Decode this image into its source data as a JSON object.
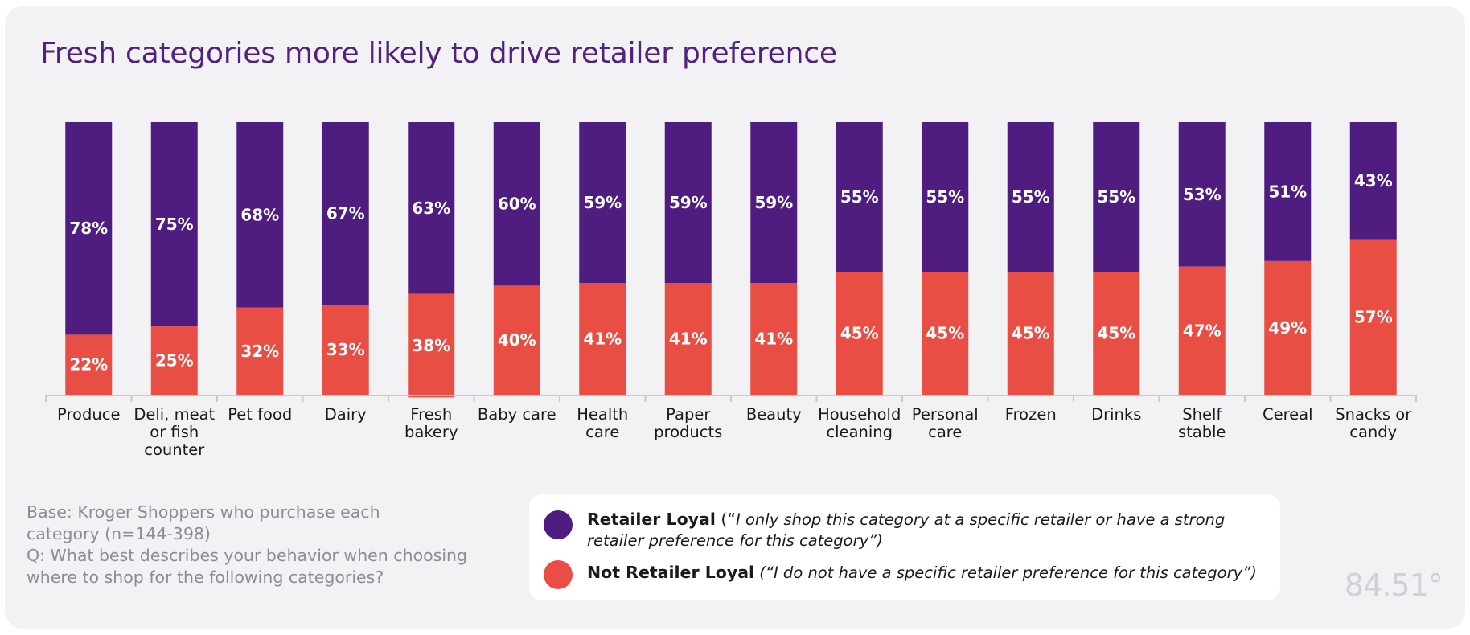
{
  "title": "Fresh categories more likely to drive retailer preference",
  "colors": {
    "loyal": "#4f1d7f",
    "not_loyal": "#e84e43",
    "axis": "#c8c8d0"
  },
  "chart_data": {
    "type": "bar",
    "stacked": true,
    "normalized": true,
    "title": "Fresh categories more likely to drive retailer preference",
    "ylim": [
      0,
      100
    ],
    "categories": [
      [
        "Produce"
      ],
      [
        "Deli, meat",
        "or fish",
        "counter"
      ],
      [
        "Pet food"
      ],
      [
        "Dairy"
      ],
      [
        "Fresh",
        "bakery"
      ],
      [
        "Baby care"
      ],
      [
        "Health",
        "care"
      ],
      [
        "Paper",
        "products"
      ],
      [
        "Beauty"
      ],
      [
        "Household",
        "cleaning"
      ],
      [
        "Personal",
        "care"
      ],
      [
        "Frozen"
      ],
      [
        "Drinks"
      ],
      [
        "Shelf",
        "stable"
      ],
      [
        "Cereal"
      ],
      [
        "Snacks or",
        "candy"
      ]
    ],
    "series": [
      {
        "name": "Retailer Loyal",
        "color": "#4f1d7f",
        "values": [
          78,
          75,
          68,
          67,
          63,
          60,
          59,
          59,
          59,
          55,
          55,
          55,
          55,
          53,
          51,
          43
        ],
        "labels": [
          "78%",
          "75%",
          "68%",
          "67%",
          "63%",
          "60%",
          "59%",
          "59%",
          "59%",
          "55%",
          "55%",
          "55%",
          "55%",
          "53%",
          "51%",
          "43%"
        ]
      },
      {
        "name": "Not Retailer Loyal",
        "color": "#e84e43",
        "values": [
          22,
          25,
          32,
          33,
          38,
          40,
          41,
          41,
          41,
          45,
          45,
          45,
          45,
          47,
          49,
          57
        ],
        "labels": [
          "22%",
          "25%",
          "32%",
          "33%",
          "38%",
          "40%",
          "41%",
          "41%",
          "41%",
          "45%",
          "45%",
          "45%",
          "45%",
          "47%",
          "49%",
          "57%"
        ]
      }
    ]
  },
  "legend": {
    "loyal": {
      "name": "Retailer Loyal",
      "desc_open": " (“",
      "desc_line1": "I only shop this category at a specific retailer or have a strong",
      "desc_line2": "retailer preference for this category”)"
    },
    "not_loyal": {
      "name": "Not Retailer Loyal",
      "desc": " (“I do not have a specific retailer preference for this category”)"
    }
  },
  "notes": {
    "base_line1": "Base: Kroger Shoppers who purchase each",
    "base_line2": "category (n=144-398)",
    "question_line1": "Q: What best describes your behavior when choosing",
    "question_line2": "where to shop for the following categories?"
  },
  "logo": {
    "text": "84.51°"
  }
}
